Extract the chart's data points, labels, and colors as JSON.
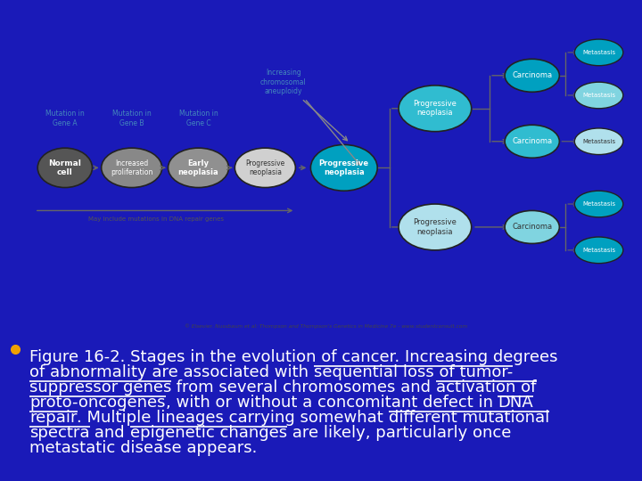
{
  "background_color": "#1a1ab8",
  "image_bg": "#f0f0f0",
  "bullet_color": "#f0a000",
  "text_color": "#ffffff",
  "copyright_text": "© Elsevier. Nussbaum et al: Thompson and Thompson's Genetics in Medicine 7e - www.studentconsult.com",
  "line_segments": [
    [
      [
        "Figure 16-2. Stages in the evolution of cancer. Increasing degrees",
        false
      ]
    ],
    [
      [
        "of abnormality are associated with ",
        false
      ],
      [
        "sequential loss of tumor-",
        true
      ]
    ],
    [
      [
        "suppressor genes",
        true
      ],
      [
        " from several chromosomes and ",
        false
      ],
      [
        "activation of",
        true
      ]
    ],
    [
      [
        "proto-oncogenes",
        true
      ],
      [
        ", with or without a concomitant defect in ",
        false
      ],
      [
        "DNA",
        true
      ]
    ],
    [
      [
        "repair",
        true
      ],
      [
        ". Multiple lineages carrying somewhat ",
        false
      ],
      [
        "different mutational",
        true
      ]
    ],
    [
      [
        "spectra",
        true
      ],
      [
        " and ",
        false
      ],
      [
        "epigenetic changes",
        true
      ],
      [
        " are likely, particularly once",
        false
      ]
    ],
    [
      [
        "metastatic disease appears.",
        false
      ]
    ]
  ]
}
